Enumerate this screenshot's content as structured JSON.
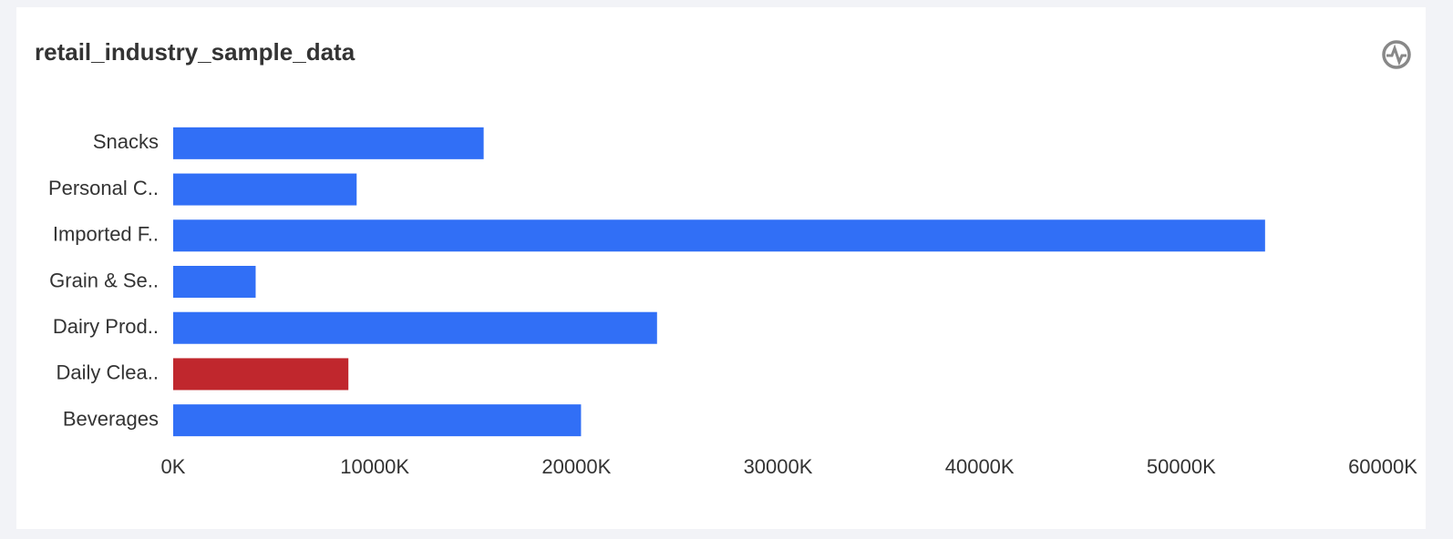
{
  "chart_data": {
    "type": "hbar",
    "title": "retail_industry_sample_data",
    "categories": [
      "Snacks",
      "Personal C..",
      "Imported F..",
      "Grain & Se..",
      "Dairy Prod..",
      "Daily Clea..",
      "Beverages"
    ],
    "values": [
      15400,
      9100,
      54160,
      4090,
      24000,
      8690,
      20230
    ],
    "colors": [
      "#316ff6",
      "#316ff6",
      "#316ff6",
      "#316ff6",
      "#316ff6",
      "#c0272d",
      "#316ff6"
    ],
    "xlim": [
      0,
      60000
    ],
    "xticks": [
      {
        "value": 0,
        "label": "0K"
      },
      {
        "value": 10000,
        "label": "10000K"
      },
      {
        "value": 20000,
        "label": "20000K"
      },
      {
        "value": 30000,
        "label": "30000K"
      },
      {
        "value": 40000,
        "label": "40000K"
      },
      {
        "value": 50000,
        "label": "50000K"
      },
      {
        "value": 60000,
        "label": "60000K"
      }
    ],
    "grid": false
  }
}
